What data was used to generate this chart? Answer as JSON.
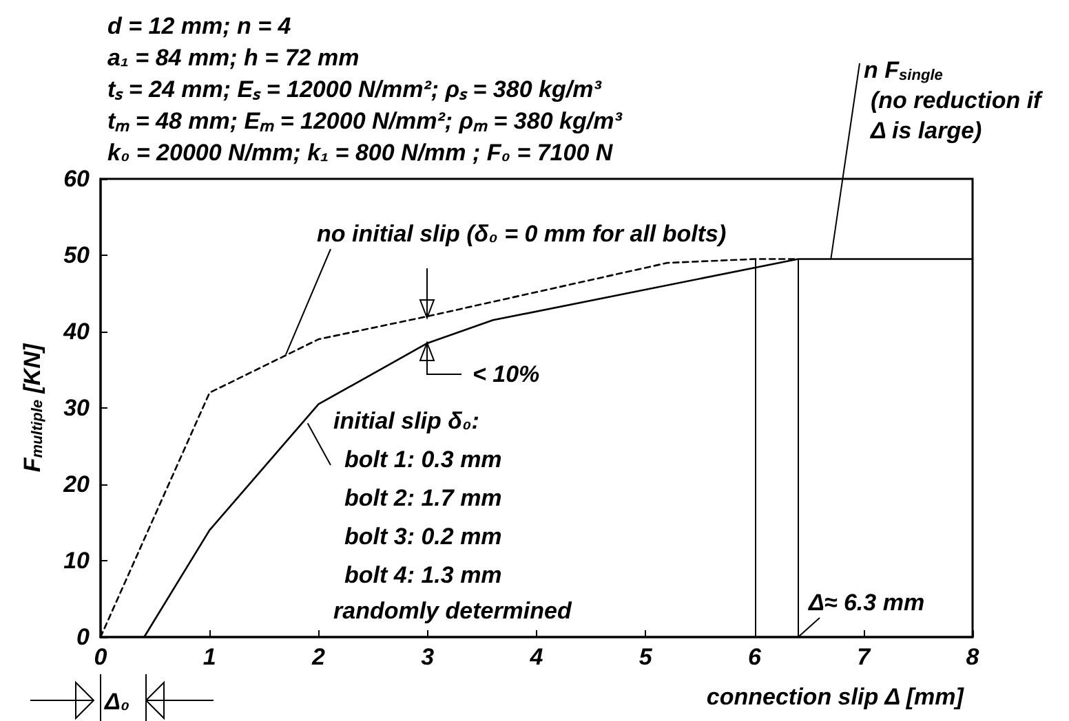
{
  "chart_data": {
    "type": "line",
    "xlabel": "connection slip Δ [mm]",
    "ylabel": "F$_{multiple}$ [KN]",
    "xlim": [
      0,
      8
    ],
    "xticks": [
      0,
      1,
      2,
      3,
      4,
      5,
      6,
      7,
      8
    ],
    "ylim": [
      0,
      60
    ],
    "yticks": [
      0,
      10,
      20,
      30,
      40,
      50,
      60
    ],
    "grid": false,
    "marker": "none",
    "series": [
      {
        "color": "#000000",
        "line_style": "dashed",
        "x": [
          0,
          1,
          2,
          3,
          5.2,
          6,
          6.4
        ],
        "values": [
          0,
          32,
          39,
          42,
          49,
          49.5,
          49.5
        ]
      },
      {
        "color": "#000000",
        "line_style": "solid",
        "x": [
          0.4,
          1,
          2,
          3,
          3.6,
          6.4,
          8
        ],
        "values": [
          0,
          14,
          30.5,
          38.5,
          41.5,
          49.5,
          49.5
        ]
      }
    ],
    "ref_lines": [
      {
        "axis": "x",
        "value": 6,
        "color": "#000000"
      },
      {
        "axis": "x",
        "value": 6.4,
        "color": "#000000"
      }
    ],
    "annotations": [
      "d = 12 mm; n = 4",
      "a₁ = 84 mm; h = 72 mm",
      "tₛ = 24 mm; Eₛ = 12000 N/mm²; ρₛ = 380 kg/m³",
      "tₘ = 48 mm; Eₘ = 12000 N/mm²; ρₘ = 380 kg/m³",
      "k₀ = 20000 N/mm; k₁ = 800 N/mm ; F₀ = 7100 N",
      {
        "text": "n F$_{single}$",
        "x": 6.7,
        "y": 49.5
      },
      "(no reduction if\nΔ is large)",
      {
        "text": "no initial slip (δ₀ = 0 mm for all bolts)",
        "x": 1.7,
        "y": 37
      },
      "< 10%",
      {
        "text": "initial slip δ₀:",
        "x": 1.9,
        "y": 28
      },
      "bolt 1: 0.3 mm",
      "bolt 2: 1.7 mm",
      "bolt 3: 0.2 mm",
      "bolt 4: 1.3 mm",
      "randomly determined",
      {
        "text": "Δ≈ 6.3 mm",
        "x": 6.4,
        "y": 0
      },
      "Δ₀"
    ]
  }
}
